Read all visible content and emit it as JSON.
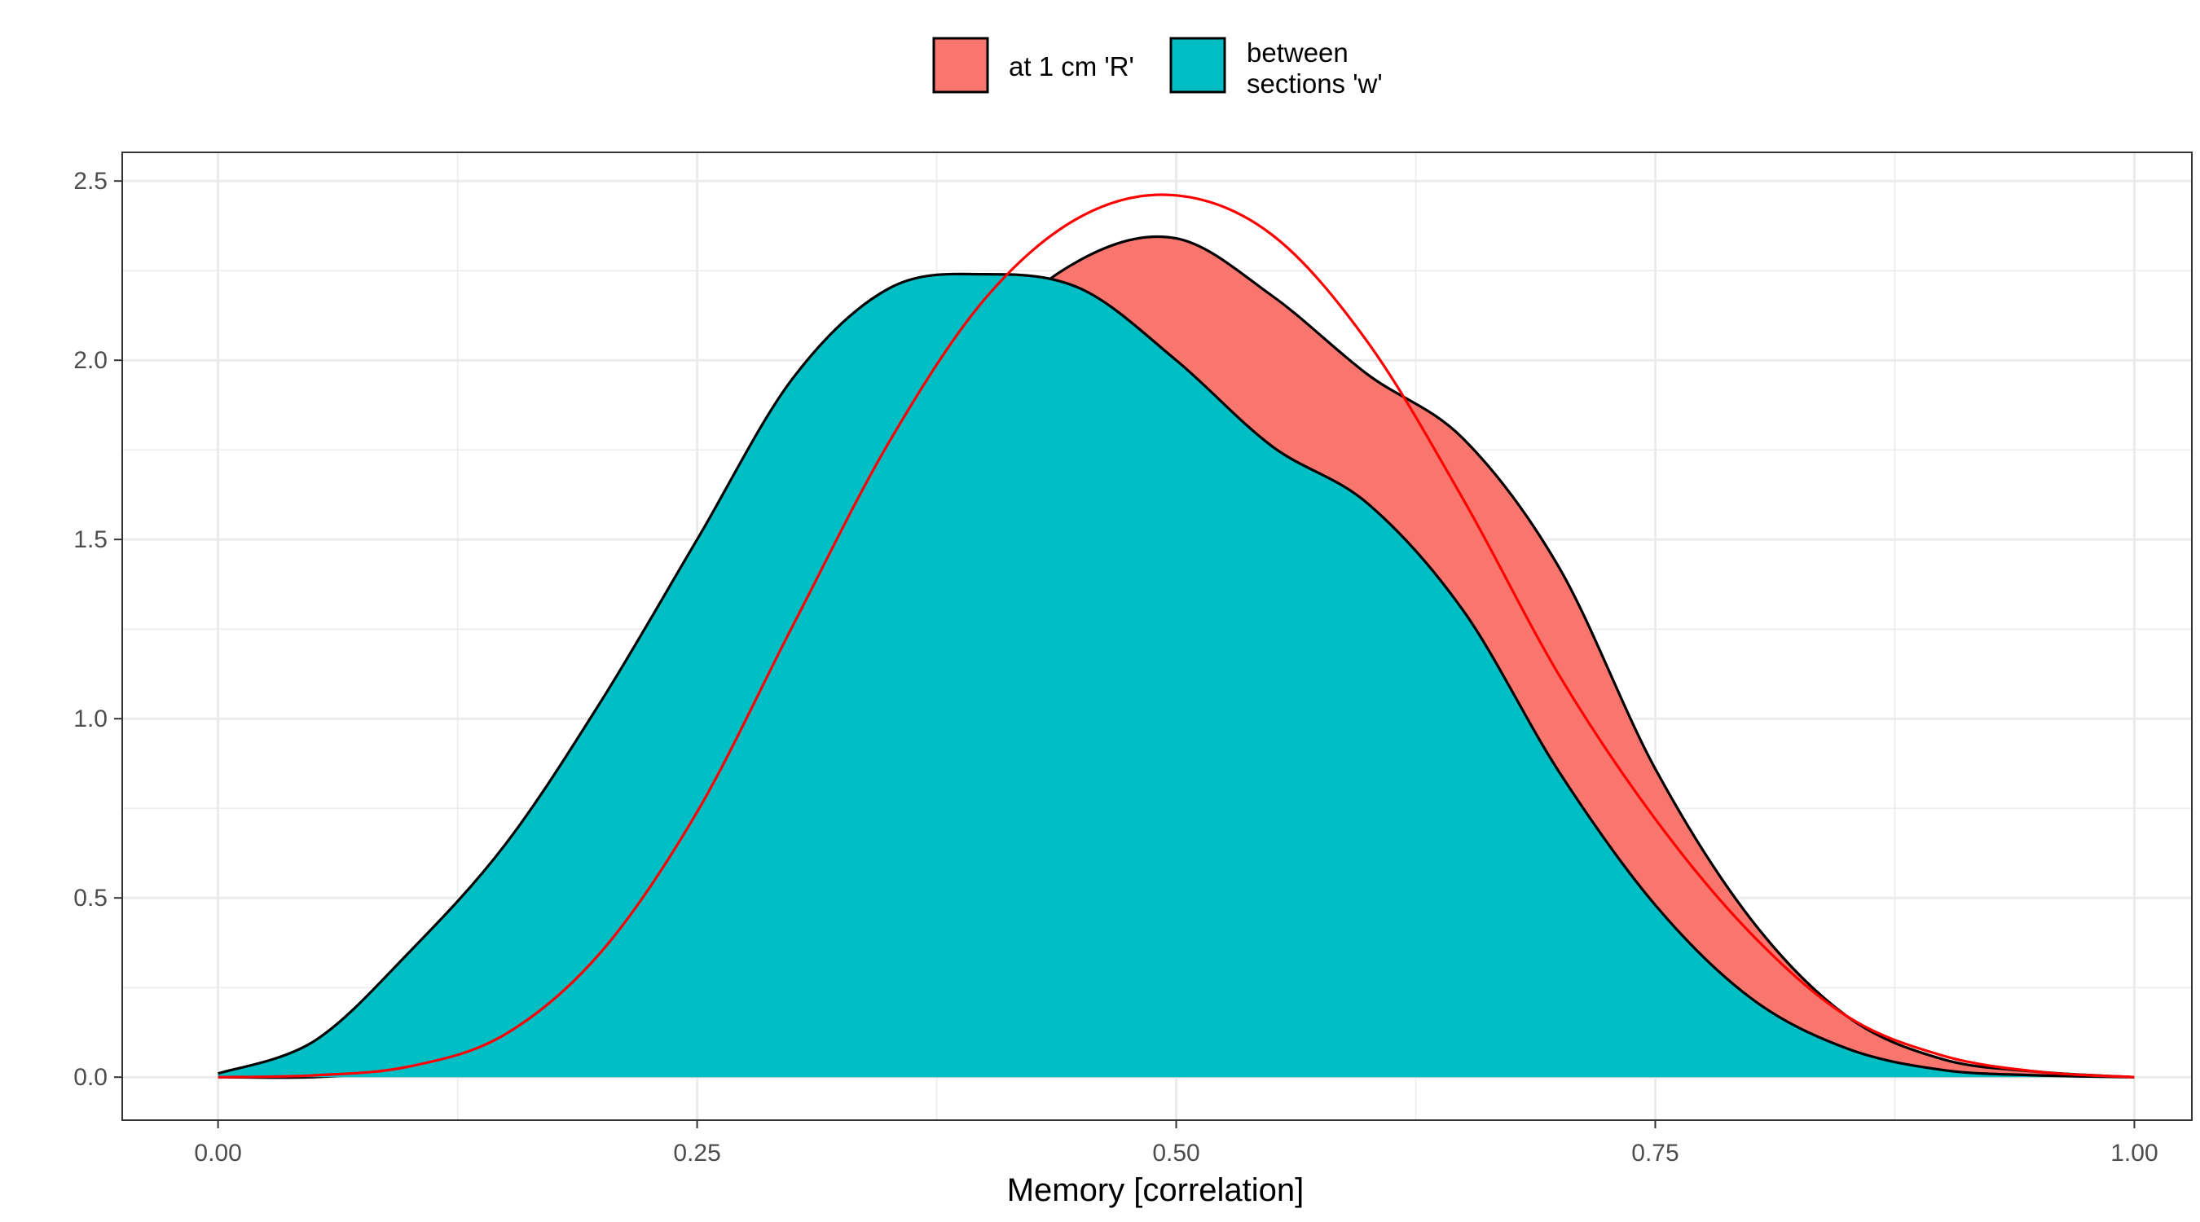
{
  "chart_data": {
    "type": "area",
    "title": "",
    "xlabel": "Memory [correlation]",
    "ylabel": "",
    "xlim": [
      -0.05,
      1.03
    ],
    "ylim": [
      -0.12,
      2.58
    ],
    "x_ticks": [
      {
        "value": 0.0,
        "label": "0.00"
      },
      {
        "value": 0.25,
        "label": "0.25"
      },
      {
        "value": 0.5,
        "label": "0.50"
      },
      {
        "value": 0.75,
        "label": "0.75"
      },
      {
        "value": 1.0,
        "label": "1.00"
      }
    ],
    "y_ticks": [
      {
        "value": 0.0,
        "label": "0.0"
      },
      {
        "value": 0.5,
        "label": "0.5"
      },
      {
        "value": 1.0,
        "label": "1.0"
      },
      {
        "value": 1.5,
        "label": "1.5"
      },
      {
        "value": 2.0,
        "label": "2.0"
      },
      {
        "value": 2.5,
        "label": "2.5"
      }
    ],
    "grid": true,
    "legend_position": "top-center",
    "series": [
      {
        "name": "at 1 cm 'R'",
        "kind": "density",
        "color": "#F8766D",
        "points": [
          [
            0.0,
            0.0
          ],
          [
            0.05,
            0.0
          ],
          [
            0.1,
            0.02
          ],
          [
            0.15,
            0.06
          ],
          [
            0.2,
            0.15
          ],
          [
            0.25,
            0.5
          ],
          [
            0.3,
            1.05
          ],
          [
            0.35,
            1.6
          ],
          [
            0.4,
            2.05
          ],
          [
            0.45,
            2.28
          ],
          [
            0.5,
            2.34
          ],
          [
            0.55,
            2.18
          ],
          [
            0.6,
            1.96
          ],
          [
            0.65,
            1.78
          ],
          [
            0.7,
            1.42
          ],
          [
            0.75,
            0.86
          ],
          [
            0.8,
            0.44
          ],
          [
            0.85,
            0.17
          ],
          [
            0.9,
            0.05
          ],
          [
            0.95,
            0.015
          ],
          [
            1.0,
            0.0
          ]
        ]
      },
      {
        "name": "between sections 'w'",
        "kind": "density",
        "color": "#00BFC4",
        "points": [
          [
            0.0,
            0.01
          ],
          [
            0.05,
            0.1
          ],
          [
            0.1,
            0.35
          ],
          [
            0.15,
            0.65
          ],
          [
            0.2,
            1.05
          ],
          [
            0.25,
            1.5
          ],
          [
            0.3,
            1.95
          ],
          [
            0.35,
            2.2
          ],
          [
            0.4,
            2.24
          ],
          [
            0.45,
            2.2
          ],
          [
            0.5,
            2.0
          ],
          [
            0.55,
            1.76
          ],
          [
            0.6,
            1.6
          ],
          [
            0.65,
            1.3
          ],
          [
            0.7,
            0.85
          ],
          [
            0.75,
            0.48
          ],
          [
            0.8,
            0.22
          ],
          [
            0.85,
            0.08
          ],
          [
            0.9,
            0.02
          ],
          [
            0.95,
            0.005
          ],
          [
            1.0,
            0.0
          ]
        ]
      },
      {
        "name": "",
        "kind": "normal-curve",
        "color": "#FF0000",
        "points": [
          [
            0.0,
            0.0
          ],
          [
            0.05,
            0.005
          ],
          [
            0.1,
            0.03
          ],
          [
            0.15,
            0.12
          ],
          [
            0.2,
            0.35
          ],
          [
            0.25,
            0.74
          ],
          [
            0.3,
            1.26
          ],
          [
            0.35,
            1.77
          ],
          [
            0.4,
            2.17
          ],
          [
            0.45,
            2.4
          ],
          [
            0.5,
            2.46
          ],
          [
            0.55,
            2.35
          ],
          [
            0.6,
            2.05
          ],
          [
            0.65,
            1.61
          ],
          [
            0.7,
            1.12
          ],
          [
            0.75,
            0.72
          ],
          [
            0.8,
            0.4
          ],
          [
            0.85,
            0.17
          ],
          [
            0.9,
            0.06
          ],
          [
            0.95,
            0.015
          ],
          [
            1.0,
            0.0
          ]
        ]
      }
    ]
  }
}
